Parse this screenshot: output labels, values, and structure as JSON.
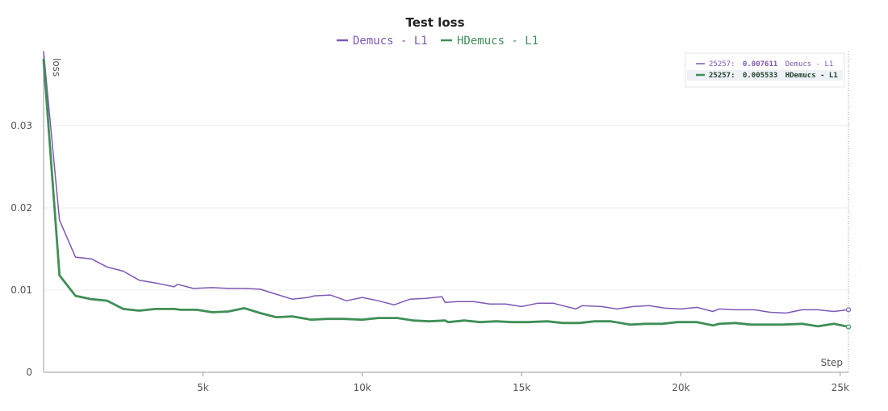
{
  "chart_data": {
    "type": "line",
    "title": "Test loss",
    "xlabel": "Step",
    "ylabel": "loss",
    "xlim": [
      0,
      25257
    ],
    "ylim": [
      0,
      0.039
    ],
    "x_ticks": [
      5000,
      10000,
      15000,
      20000,
      25000
    ],
    "x_tick_labels": [
      "5k",
      "10k",
      "15k",
      "20k",
      "25k"
    ],
    "y_ticks": [
      0,
      0.01,
      0.02,
      0.03
    ],
    "y_tick_labels": [
      "0",
      "0.01",
      "0.02",
      "0.03"
    ],
    "grid": true,
    "legend_position": "top",
    "series": [
      {
        "name": "Demucs - L1",
        "color": "#7f57b4",
        "points": [
          [
            0,
            0.039
          ],
          [
            500,
            0.0185
          ],
          [
            1000,
            0.014
          ],
          [
            1500,
            0.0138
          ],
          [
            2000,
            0.0128
          ],
          [
            2500,
            0.0123
          ],
          [
            3000,
            0.0112
          ],
          [
            3600,
            0.0108
          ],
          [
            4100,
            0.0104
          ],
          [
            4200,
            0.0107
          ],
          [
            4700,
            0.0102
          ],
          [
            5300,
            0.0103
          ],
          [
            5800,
            0.0102
          ],
          [
            6300,
            0.0102
          ],
          [
            6800,
            0.0101
          ],
          [
            7300,
            0.0095
          ],
          [
            7800,
            0.0089
          ],
          [
            8300,
            0.0091
          ],
          [
            8500,
            0.0093
          ],
          [
            9000,
            0.0094
          ],
          [
            9500,
            0.0087
          ],
          [
            10000,
            0.0091
          ],
          [
            10500,
            0.0087
          ],
          [
            11000,
            0.0082
          ],
          [
            11500,
            0.0089
          ],
          [
            12000,
            0.009
          ],
          [
            12500,
            0.0092
          ],
          [
            12600,
            0.0085
          ],
          [
            13000,
            0.0086
          ],
          [
            13500,
            0.0086
          ],
          [
            14000,
            0.0083
          ],
          [
            14500,
            0.0083
          ],
          [
            15000,
            0.008
          ],
          [
            15500,
            0.0084
          ],
          [
            16000,
            0.0084
          ],
          [
            16700,
            0.0077
          ],
          [
            16900,
            0.0081
          ],
          [
            17500,
            0.008
          ],
          [
            18000,
            0.0077
          ],
          [
            18500,
            0.008
          ],
          [
            19000,
            0.0081
          ],
          [
            19500,
            0.0078
          ],
          [
            20000,
            0.0077
          ],
          [
            20500,
            0.0079
          ],
          [
            21000,
            0.0074
          ],
          [
            21200,
            0.0077
          ],
          [
            21700,
            0.0076
          ],
          [
            22300,
            0.0076
          ],
          [
            22800,
            0.0073
          ],
          [
            23300,
            0.0072
          ],
          [
            23800,
            0.0076
          ],
          [
            24300,
            0.0076
          ],
          [
            24800,
            0.0074
          ],
          [
            25257,
            0.007611
          ]
        ]
      },
      {
        "name": "HDemucs - L1",
        "color": "#3f8f56",
        "points": [
          [
            0,
            0.038
          ],
          [
            500,
            0.0118
          ],
          [
            1000,
            0.0093
          ],
          [
            1500,
            0.0089
          ],
          [
            2000,
            0.0087
          ],
          [
            2500,
            0.0077
          ],
          [
            3000,
            0.0075
          ],
          [
            3500,
            0.0077
          ],
          [
            4100,
            0.0077
          ],
          [
            4300,
            0.0076
          ],
          [
            4800,
            0.0076
          ],
          [
            5300,
            0.0073
          ],
          [
            5800,
            0.0074
          ],
          [
            6300,
            0.0078
          ],
          [
            6800,
            0.0072
          ],
          [
            7300,
            0.0067
          ],
          [
            7800,
            0.0068
          ],
          [
            8400,
            0.0064
          ],
          [
            8900,
            0.0065
          ],
          [
            9400,
            0.0065
          ],
          [
            10000,
            0.0064
          ],
          [
            10500,
            0.0066
          ],
          [
            11100,
            0.0066
          ],
          [
            11600,
            0.0063
          ],
          [
            12100,
            0.0062
          ],
          [
            12600,
            0.0063
          ],
          [
            12700,
            0.0061
          ],
          [
            13200,
            0.0063
          ],
          [
            13700,
            0.0061
          ],
          [
            14200,
            0.0062
          ],
          [
            14700,
            0.0061
          ],
          [
            15200,
            0.0061
          ],
          [
            15800,
            0.0062
          ],
          [
            16300,
            0.006
          ],
          [
            16800,
            0.006
          ],
          [
            17300,
            0.0062
          ],
          [
            17800,
            0.0062
          ],
          [
            18400,
            0.0058
          ],
          [
            18900,
            0.0059
          ],
          [
            19400,
            0.0059
          ],
          [
            19900,
            0.0061
          ],
          [
            20500,
            0.0061
          ],
          [
            21000,
            0.0057
          ],
          [
            21200,
            0.0059
          ],
          [
            21700,
            0.006
          ],
          [
            22200,
            0.0058
          ],
          [
            22700,
            0.0058
          ],
          [
            23200,
            0.0058
          ],
          [
            23800,
            0.0059
          ],
          [
            24300,
            0.0056
          ],
          [
            24800,
            0.0059
          ],
          [
            25257,
            0.005533
          ]
        ]
      }
    ],
    "tooltip": {
      "position": "top-right",
      "entries": [
        {
          "step": "25257:",
          "value": "0.007611",
          "name": "Demucs - L1",
          "color": "#7f57b4"
        },
        {
          "step": "25257:",
          "value": "0.005533",
          "name": "HDemucs - L1",
          "color": "#3f8f56"
        }
      ]
    }
  }
}
